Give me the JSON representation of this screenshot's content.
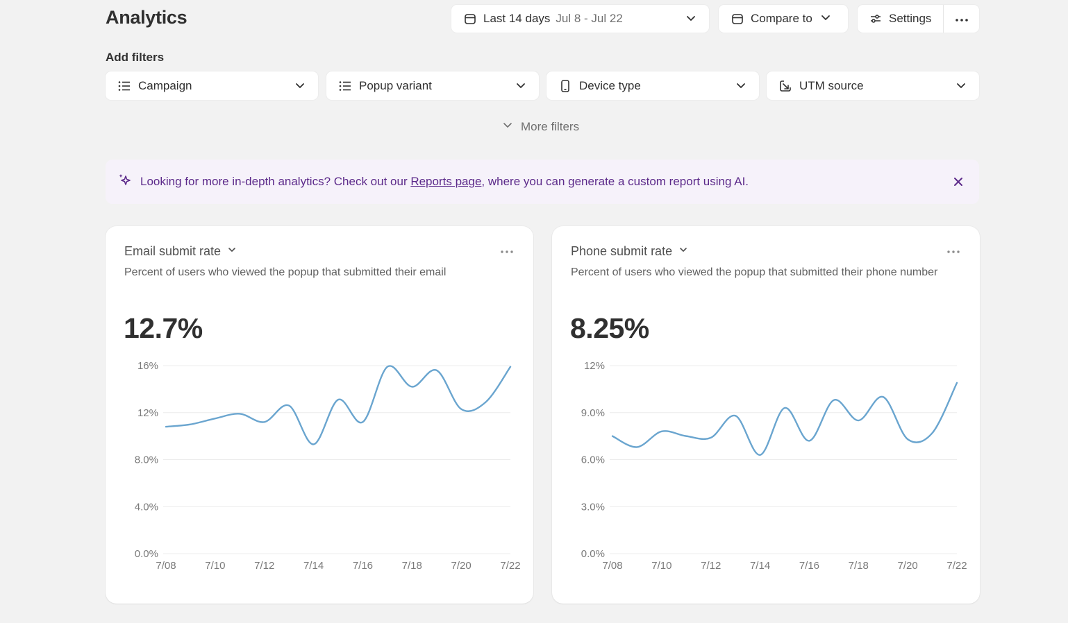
{
  "page": {
    "title": "Analytics"
  },
  "toolbar": {
    "date_range_label": "Last 14 days",
    "date_range_value": "Jul 8 - Jul 22",
    "compare_label": "Compare to",
    "settings_label": "Settings",
    "icons": [
      "calendar-icon",
      "chevron-down-icon",
      "sliders-icon",
      "more-horizontal-icon"
    ]
  },
  "filters": {
    "heading": "Add filters",
    "items": [
      {
        "label": "Campaign",
        "icon": "list-icon"
      },
      {
        "label": "Popup variant",
        "icon": "list-icon"
      },
      {
        "label": "Device type",
        "icon": "mobile-icon"
      },
      {
        "label": "UTM source",
        "icon": "external-source-icon"
      }
    ],
    "more_label": "More filters"
  },
  "banner": {
    "text_before": "Looking for more in-depth analytics? Check out our ",
    "link_text": "Reports page",
    "text_after": ", where you can generate a custom report using AI.",
    "icon": "sparkle-icon",
    "color": "#5c2a8a",
    "background": "#f6f2fa"
  },
  "cards": [
    {
      "title": "Email submit rate",
      "description": "Percent of users who viewed the popup that submitted their email",
      "value": "12.7%"
    },
    {
      "title": "Phone submit rate",
      "description": "Percent of users who viewed the popup that submitted their phone number",
      "value": "8.25%"
    }
  ],
  "chart_data": [
    {
      "type": "line",
      "x": [
        "7/08",
        "7/09",
        "7/10",
        "7/11",
        "7/12",
        "7/13",
        "7/14",
        "7/15",
        "7/16",
        "7/17",
        "7/18",
        "7/19",
        "7/20",
        "7/21",
        "7/22"
      ],
      "x_tick_labels": [
        "7/08",
        "7/10",
        "7/12",
        "7/14",
        "7/16",
        "7/18",
        "7/20",
        "7/22"
      ],
      "y_tick_labels": [
        "16%",
        "12%",
        "8.0%",
        "4.0%",
        "0.0%"
      ],
      "y_ticks": [
        16,
        12,
        8,
        4,
        0
      ],
      "ylim": [
        0,
        16
      ],
      "series": [
        {
          "values": [
            10.8,
            11.0,
            11.5,
            11.9,
            11.2,
            12.6,
            9.3,
            13.1,
            11.2,
            15.9,
            14.2,
            15.6,
            12.3,
            12.9,
            15.9
          ]
        }
      ],
      "grid": true,
      "line_color": "#6aa5cf"
    },
    {
      "type": "line",
      "x": [
        "7/08",
        "7/09",
        "7/10",
        "7/11",
        "7/12",
        "7/13",
        "7/14",
        "7/15",
        "7/16",
        "7/17",
        "7/18",
        "7/19",
        "7/20",
        "7/21",
        "7/22"
      ],
      "x_tick_labels": [
        "7/08",
        "7/10",
        "7/12",
        "7/14",
        "7/16",
        "7/18",
        "7/20",
        "7/22"
      ],
      "y_tick_labels": [
        "12%",
        "9.0%",
        "6.0%",
        "3.0%",
        "0.0%"
      ],
      "y_ticks": [
        12,
        9,
        6,
        3,
        0
      ],
      "ylim": [
        0,
        12
      ],
      "series": [
        {
          "values": [
            7.5,
            6.8,
            7.8,
            7.5,
            7.4,
            8.8,
            6.3,
            9.3,
            7.2,
            9.8,
            8.5,
            10.0,
            7.3,
            7.7,
            10.9
          ]
        }
      ],
      "grid": true,
      "line_color": "#6aa5cf"
    }
  ]
}
